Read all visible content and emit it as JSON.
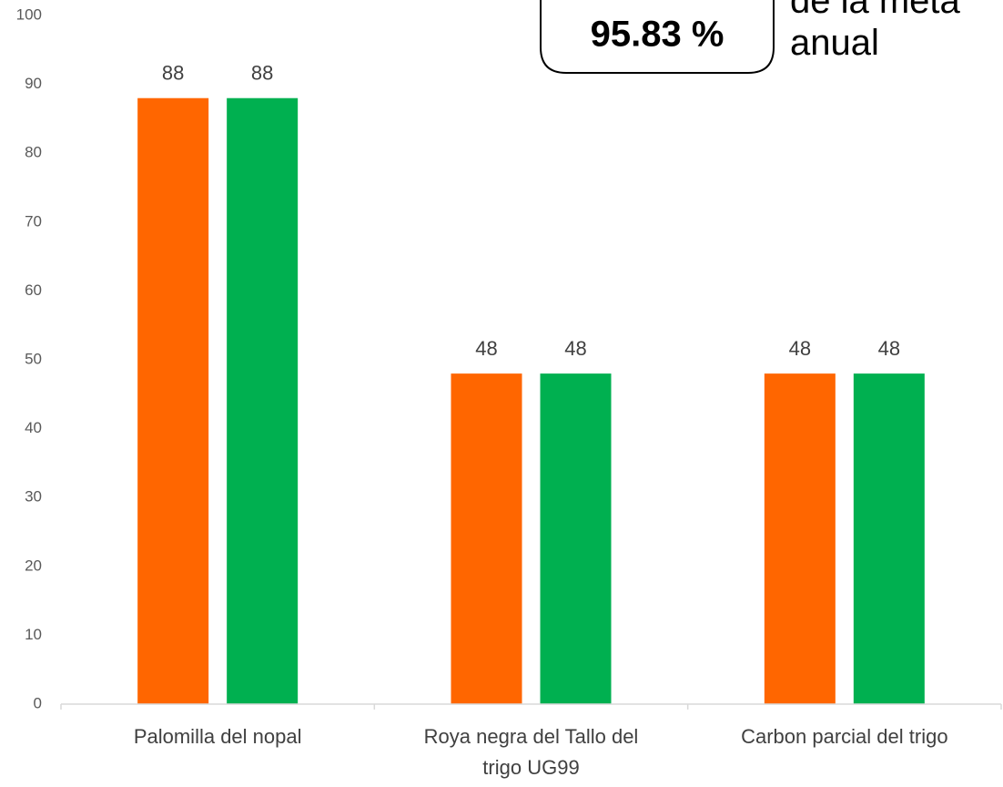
{
  "chart_data": {
    "type": "bar",
    "title": "",
    "xlabel": "",
    "ylabel": "",
    "ylim": [
      0,
      100
    ],
    "yticks": [
      0,
      10,
      20,
      30,
      40,
      50,
      60,
      70,
      80,
      90,
      100
    ],
    "categories": [
      [
        "Palomilla del nopal"
      ],
      [
        "Roya negra del Tallo del",
        "trigo UG99"
      ],
      [
        "Carbon parcial del trigo"
      ]
    ],
    "series": [
      {
        "values": [
          88,
          48,
          48
        ],
        "color": "#ff6600"
      },
      {
        "values": [
          88,
          48,
          48
        ],
        "color": "#00b050"
      }
    ],
    "grid": false,
    "legend": "none",
    "annotations": {
      "callout_value": "95.83 %",
      "callout_side_lines": [
        "de la meta",
        "anual"
      ]
    }
  }
}
